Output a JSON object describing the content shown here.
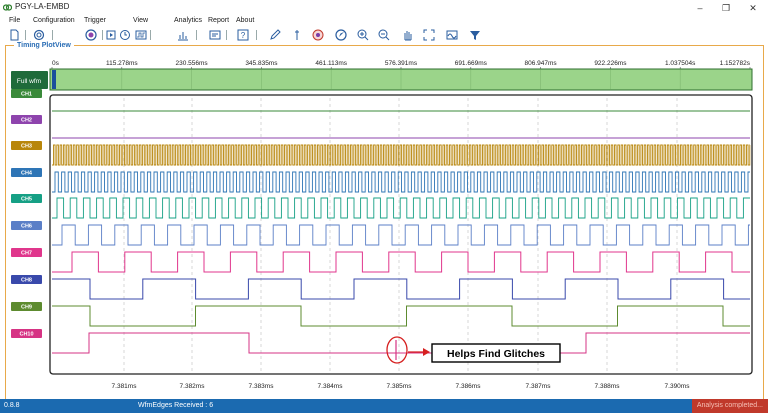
{
  "window": {
    "title": "PGY-LA-EMBD",
    "controls": [
      "–",
      "❐",
      "✕"
    ]
  },
  "menu": {
    "items": [
      "File",
      "Configuration",
      "Trigger",
      "View",
      "Analytics",
      "Report",
      "About"
    ]
  },
  "toolbar": {
    "icons": [
      "new-file-icon",
      "open-icon",
      "record-icon",
      "play-icon",
      "stop-icon",
      "waveform-icon",
      "chart-icon",
      "settings-icon",
      "help-icon",
      "edit-icon",
      "marker-icon",
      "target-icon",
      "compass-icon",
      "zoom-in-icon",
      "zoom-out-icon",
      "hand-icon",
      "fit-icon",
      "wave-icon",
      "filter-icon"
    ]
  },
  "panel": {
    "title": "Timing PlotView",
    "full_wfm_label": "Full wfm",
    "top_ruler": [
      "0s",
      "115.278ms",
      "230.556ms",
      "345.835ms",
      "461.113ms",
      "576.391ms",
      "691.669ms",
      "806.947ms",
      "922.226ms",
      "1.037504s",
      "1.152782s"
    ],
    "bottom_ruler": [
      "7.381ms",
      "7.382ms",
      "7.383ms",
      "7.384ms",
      "7.385ms",
      "7.386ms",
      "7.387ms",
      "7.388ms",
      "7.390ms"
    ],
    "channels": [
      {
        "label": "CH1",
        "color": "#3a8a3a"
      },
      {
        "label": "CH2",
        "color": "#8e44ad"
      },
      {
        "label": "CH3",
        "color": "#b8860b"
      },
      {
        "label": "CH4",
        "color": "#2e75b6"
      },
      {
        "label": "CH5",
        "color": "#16a085"
      },
      {
        "label": "CH6",
        "color": "#5b7fc7"
      },
      {
        "label": "CH7",
        "color": "#e0368c"
      },
      {
        "label": "CH8",
        "color": "#3949ab"
      },
      {
        "label": "CH9",
        "color": "#5d8b2f"
      },
      {
        "label": "CH10",
        "color": "#d63384"
      }
    ],
    "annotation": "Helps Find Glitches",
    "colors": {
      "full_wfm_bg": "#1f6b3a",
      "overview_fill": "#9bd48a",
      "panel_border": "#e8a94a"
    }
  },
  "status": {
    "version": "0.8.8",
    "edges": "WfmEdges Received : 6",
    "state": "Analysis completed..."
  }
}
